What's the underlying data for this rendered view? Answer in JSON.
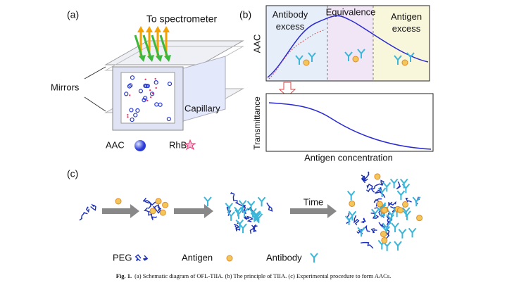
{
  "panel_a": {
    "label": "(a)",
    "arrow_label": "To spectrometer",
    "mirrors": "Mirrors",
    "capillary": "Capillary",
    "legend_aac": "AAC",
    "legend_rhb": "RhB"
  },
  "panel_b": {
    "label": "(b)",
    "regions": [
      "Antibody\nexcess",
      "Equivalence",
      "Antigen\nexcess"
    ],
    "top_ylabel": "AAC",
    "bottom_ylabel": "Transmittance",
    "xlabel": "Antigen concentration"
  },
  "panel_c": {
    "label": "(c)",
    "arrow_label": "Time",
    "legend": [
      "PEG",
      "Antigen",
      "Antibody"
    ]
  },
  "caption": {
    "lead": "Fig. 1.",
    "text": "(a) Schematic diagram of OFL-TIIA. (b) The principle of TIIA. (c) Experimental procedure to form AACs."
  }
}
